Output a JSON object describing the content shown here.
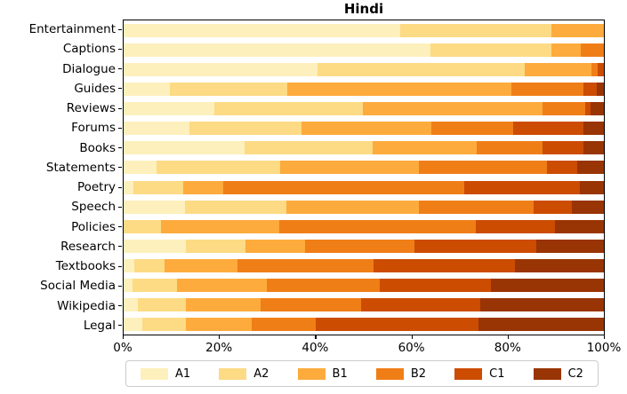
{
  "chart_data": {
    "type": "bar",
    "orientation": "horizontal",
    "stacked": true,
    "title": "Hindi",
    "xlabel": "",
    "ylabel": "",
    "xlim": [
      0,
      100
    ],
    "grid": false,
    "legend_position": "bottom",
    "x_ticks": [
      {
        "value": 0,
        "label": "0%"
      },
      {
        "value": 20,
        "label": "20%"
      },
      {
        "value": 40,
        "label": "40%"
      },
      {
        "value": 60,
        "label": "60%"
      },
      {
        "value": 80,
        "label": "80%"
      },
      {
        "value": 100,
        "label": "100%"
      }
    ],
    "categories": [
      "Entertainment",
      "Captions",
      "Dialogue",
      "Guides",
      "Reviews",
      "Forums",
      "Books",
      "Statements",
      "Poetry",
      "Speech",
      "Policies",
      "Research",
      "Textbooks",
      "Social Media",
      "Wikipedia",
      "Legal"
    ],
    "series": [
      {
        "name": "A1",
        "color": "#fdf0bc",
        "values": [
          57.5,
          63.8,
          40.4,
          9.6,
          18.9,
          13.7,
          25.1,
          6.8,
          2.1,
          12.7,
          0,
          13.0,
          2.3,
          1.8,
          2.9,
          3.9
        ]
      },
      {
        "name": "A2",
        "color": "#fdda84",
        "values": [
          31.6,
          25.2,
          43.1,
          24.4,
          30.9,
          23.4,
          26.7,
          25.8,
          10.3,
          21.2,
          7.7,
          12.4,
          6.2,
          9.3,
          10.1,
          9.1
        ]
      },
      {
        "name": "B1",
        "color": "#fdab3d",
        "values": [
          10.9,
          6.1,
          13.9,
          46.7,
          37.4,
          27.0,
          21.8,
          28.9,
          8.3,
          27.6,
          24.7,
          12.4,
          15.3,
          18.8,
          15.6,
          13.7
        ]
      },
      {
        "name": "B2",
        "color": "#f07e17",
        "values": [
          0,
          4.9,
          1.3,
          15.0,
          9.0,
          17.0,
          13.6,
          26.7,
          50.3,
          23.8,
          41.0,
          22.7,
          28.3,
          23.5,
          20.9,
          13.3
        ]
      },
      {
        "name": "C1",
        "color": "#cc4c02",
        "values": [
          0,
          0,
          1.3,
          2.8,
          1.0,
          14.6,
          8.5,
          6.3,
          24.0,
          8.1,
          16.4,
          25.4,
          29.3,
          23.1,
          24.7,
          33.9
        ]
      },
      {
        "name": "C2",
        "color": "#993404",
        "values": [
          0,
          0,
          0,
          1.5,
          2.8,
          4.3,
          4.3,
          5.5,
          5.0,
          6.6,
          10.2,
          14.1,
          18.6,
          23.5,
          25.8,
          26.1
        ]
      }
    ]
  }
}
